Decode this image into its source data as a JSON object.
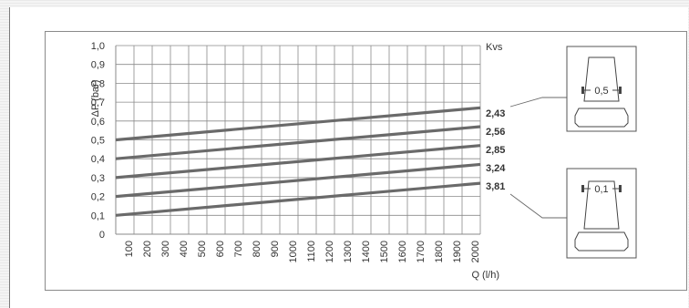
{
  "chart_data": {
    "type": "line",
    "xlabel": "Q (l/h)",
    "ylabel": "ΔP (bar)",
    "legend_title": "Kvs",
    "xlim": [
      0,
      2000
    ],
    "ylim": [
      0,
      1.0
    ],
    "x_ticks": [
      100,
      200,
      300,
      400,
      500,
      600,
      700,
      800,
      900,
      1000,
      1100,
      1200,
      1300,
      1400,
      1500,
      1600,
      1700,
      1800,
      1900,
      2000
    ],
    "y_ticks": [
      "0",
      "0,1",
      "0,2",
      "0,3",
      "0,4",
      "0,5",
      "0,6",
      "0,7",
      "0,8",
      "0,9",
      "1,0"
    ],
    "y_tick_values": [
      0,
      0.1,
      0.2,
      0.3,
      0.4,
      0.5,
      0.6,
      0.7,
      0.8,
      0.9,
      1.0
    ],
    "grid": true,
    "series": [
      {
        "name": "2,43",
        "x": [
          0,
          2000
        ],
        "y": [
          0.5,
          0.67
        ]
      },
      {
        "name": "2,56",
        "x": [
          0,
          2000
        ],
        "y": [
          0.4,
          0.57
        ]
      },
      {
        "name": "2,85",
        "x": [
          0,
          2000
        ],
        "y": [
          0.3,
          0.47
        ]
      },
      {
        "name": "3,24",
        "x": [
          0,
          2000
        ],
        "y": [
          0.2,
          0.37
        ]
      },
      {
        "name": "3,81",
        "x": [
          0,
          2000
        ],
        "y": [
          0.1,
          0.27
        ]
      }
    ],
    "insets": [
      {
        "label": "0,5"
      },
      {
        "label": "0,1"
      }
    ],
    "colors": {
      "line": "#6a6a6a",
      "grid": "#8a8a8a",
      "frame": "#8a8a8a"
    }
  }
}
